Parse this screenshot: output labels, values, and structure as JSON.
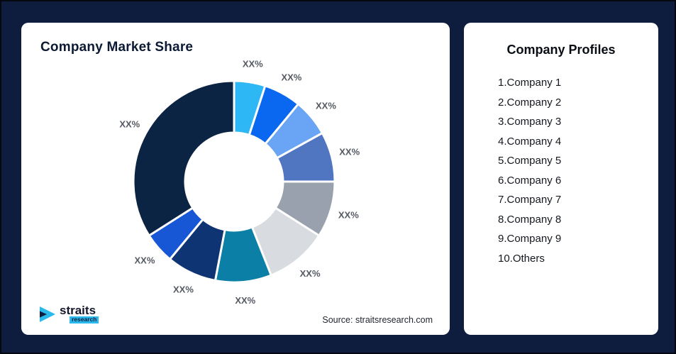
{
  "page": {
    "background": "#0e1d3d"
  },
  "market_share_card": {
    "title": "Company Market Share",
    "source": "Source: straitsresearch.com"
  },
  "logo": {
    "brand": "straits",
    "sub": "research"
  },
  "profiles_card": {
    "title": "Company Profiles",
    "items": [
      "1.Company 1",
      "2.Company 2",
      "3.Company 3",
      "4.Company 4",
      "5.Company 5",
      "6.Company 6",
      "7.Company 7",
      "8.Company 8",
      "9.Company 9",
      "10.Others"
    ]
  },
  "chart_data": {
    "type": "pie",
    "variant": "donut",
    "title": "Company Market Share",
    "start_angle_deg": 0,
    "direction": "clockwise",
    "inner_radius_ratio": 0.48,
    "legend": "none",
    "value_note": "values estimated from arc angles; all data labels shown as XX%",
    "segments": [
      {
        "label": "XX%",
        "value": 5,
        "color": "#2db7f5"
      },
      {
        "label": "XX%",
        "value": 6,
        "color": "#0a68f0"
      },
      {
        "label": "XX%",
        "value": 6,
        "color": "#6aa4f4"
      },
      {
        "label": "XX%",
        "value": 8,
        "color": "#5176c1"
      },
      {
        "label": "XX%",
        "value": 9,
        "color": "#99a1ae"
      },
      {
        "label": "XX%",
        "value": 10,
        "color": "#d8dbdf"
      },
      {
        "label": "XX%",
        "value": 9,
        "color": "#0b7fa5"
      },
      {
        "label": "XX%",
        "value": 8,
        "color": "#0f3474"
      },
      {
        "label": "XX%",
        "value": 5,
        "color": "#1757d6"
      },
      {
        "label": "XX%",
        "value": 34,
        "color": "#0c2444"
      }
    ]
  }
}
